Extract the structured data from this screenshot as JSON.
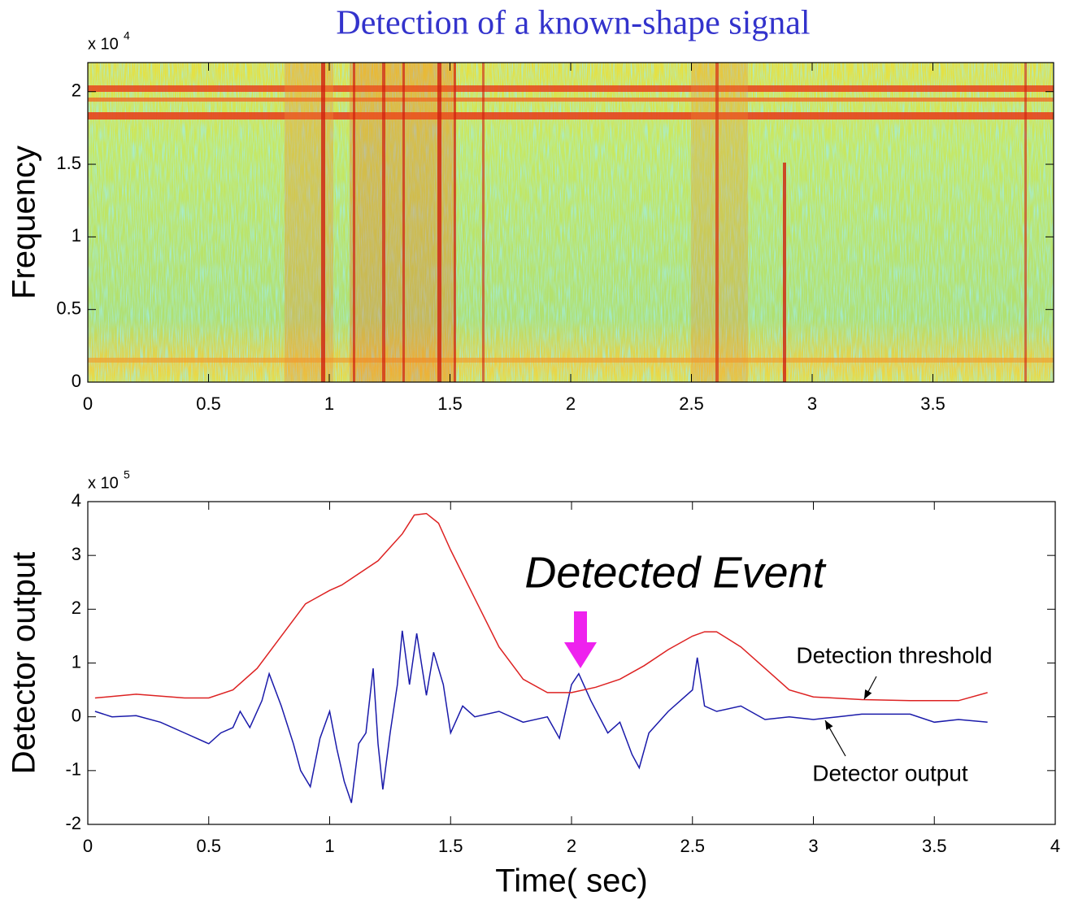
{
  "chart_data": [
    {
      "type": "spectrogram",
      "title": "Detection of a known-shape signal",
      "y_label": "Frequency",
      "y_scale_label": "x 10",
      "y_scale_exponent": "4",
      "xlim": [
        0,
        4
      ],
      "xticks": [
        0,
        0.5,
        1,
        1.5,
        2,
        2.5,
        3,
        3.5
      ],
      "ylim": [
        0,
        2.2
      ],
      "yticks": [
        0,
        0.5,
        1,
        1.5,
        2
      ]
    },
    {
      "type": "line",
      "y_label": "Detector output",
      "x_label": "Time( sec)",
      "y_scale_label": "x 10",
      "y_scale_exponent": "5",
      "xlim": [
        0,
        4
      ],
      "xticks": [
        0,
        0.5,
        1,
        1.5,
        2,
        2.5,
        3,
        3.5,
        4
      ],
      "ylim": [
        -2,
        4
      ],
      "yticks": [
        -2,
        -1,
        0,
        1,
        2,
        3,
        4
      ],
      "series": [
        {
          "name": "Detector output",
          "color": "#1a1aaa",
          "x": [
            0.03,
            0.1,
            0.2,
            0.3,
            0.4,
            0.5,
            0.55,
            0.6,
            0.63,
            0.67,
            0.72,
            0.75,
            0.8,
            0.85,
            0.88,
            0.92,
            0.96,
            1.0,
            1.03,
            1.06,
            1.09,
            1.12,
            1.15,
            1.18,
            1.2,
            1.22,
            1.25,
            1.28,
            1.3,
            1.33,
            1.36,
            1.4,
            1.43,
            1.47,
            1.5,
            1.55,
            1.6,
            1.7,
            1.8,
            1.9,
            1.95,
            2.0,
            2.03,
            2.08,
            2.15,
            2.2,
            2.25,
            2.28,
            2.32,
            2.4,
            2.5,
            2.52,
            2.55,
            2.6,
            2.7,
            2.8,
            2.9,
            3.0,
            3.1,
            3.2,
            3.3,
            3.4,
            3.5,
            3.6,
            3.72
          ],
          "values": [
            0.1,
            0.0,
            0.02,
            -0.1,
            -0.3,
            -0.5,
            -0.3,
            -0.2,
            0.1,
            -0.2,
            0.3,
            0.8,
            0.2,
            -0.5,
            -1.0,
            -1.3,
            -0.4,
            0.1,
            -0.6,
            -1.2,
            -1.6,
            -0.5,
            -0.3,
            0.9,
            -0.5,
            -1.35,
            -0.3,
            0.6,
            1.6,
            0.6,
            1.55,
            0.4,
            1.2,
            0.6,
            -0.3,
            0.2,
            0.0,
            0.1,
            -0.1,
            0.0,
            -0.4,
            0.6,
            0.8,
            0.3,
            -0.3,
            -0.1,
            -0.7,
            -0.95,
            -0.3,
            0.1,
            0.5,
            1.1,
            0.2,
            0.1,
            0.2,
            -0.05,
            0.0,
            -0.05,
            0.0,
            0.05,
            0.05,
            0.05,
            -0.1,
            -0.05,
            -0.1
          ]
        },
        {
          "name": "Detection threshold",
          "color": "#dd2222",
          "x": [
            0.03,
            0.2,
            0.4,
            0.5,
            0.6,
            0.7,
            0.8,
            0.9,
            1.0,
            1.05,
            1.1,
            1.2,
            1.3,
            1.35,
            1.4,
            1.45,
            1.5,
            1.6,
            1.7,
            1.8,
            1.9,
            2.0,
            2.1,
            2.2,
            2.3,
            2.4,
            2.5,
            2.55,
            2.6,
            2.7,
            2.8,
            2.9,
            3.0,
            3.2,
            3.4,
            3.6,
            3.72
          ],
          "values": [
            0.35,
            0.42,
            0.35,
            0.35,
            0.5,
            0.9,
            1.5,
            2.1,
            2.35,
            2.45,
            2.6,
            2.9,
            3.4,
            3.75,
            3.78,
            3.6,
            3.1,
            2.2,
            1.3,
            0.7,
            0.45,
            0.45,
            0.55,
            0.7,
            0.95,
            1.25,
            1.5,
            1.58,
            1.58,
            1.3,
            0.9,
            0.5,
            0.37,
            0.32,
            0.3,
            0.3,
            0.45
          ]
        }
      ],
      "annotations": [
        {
          "text": "Detected Event",
          "color": "#ee22ee"
        },
        {
          "text": "Detection threshold",
          "color": "#dd2222"
        },
        {
          "text": "Detector output",
          "color": "#1a1aaa"
        }
      ]
    }
  ]
}
